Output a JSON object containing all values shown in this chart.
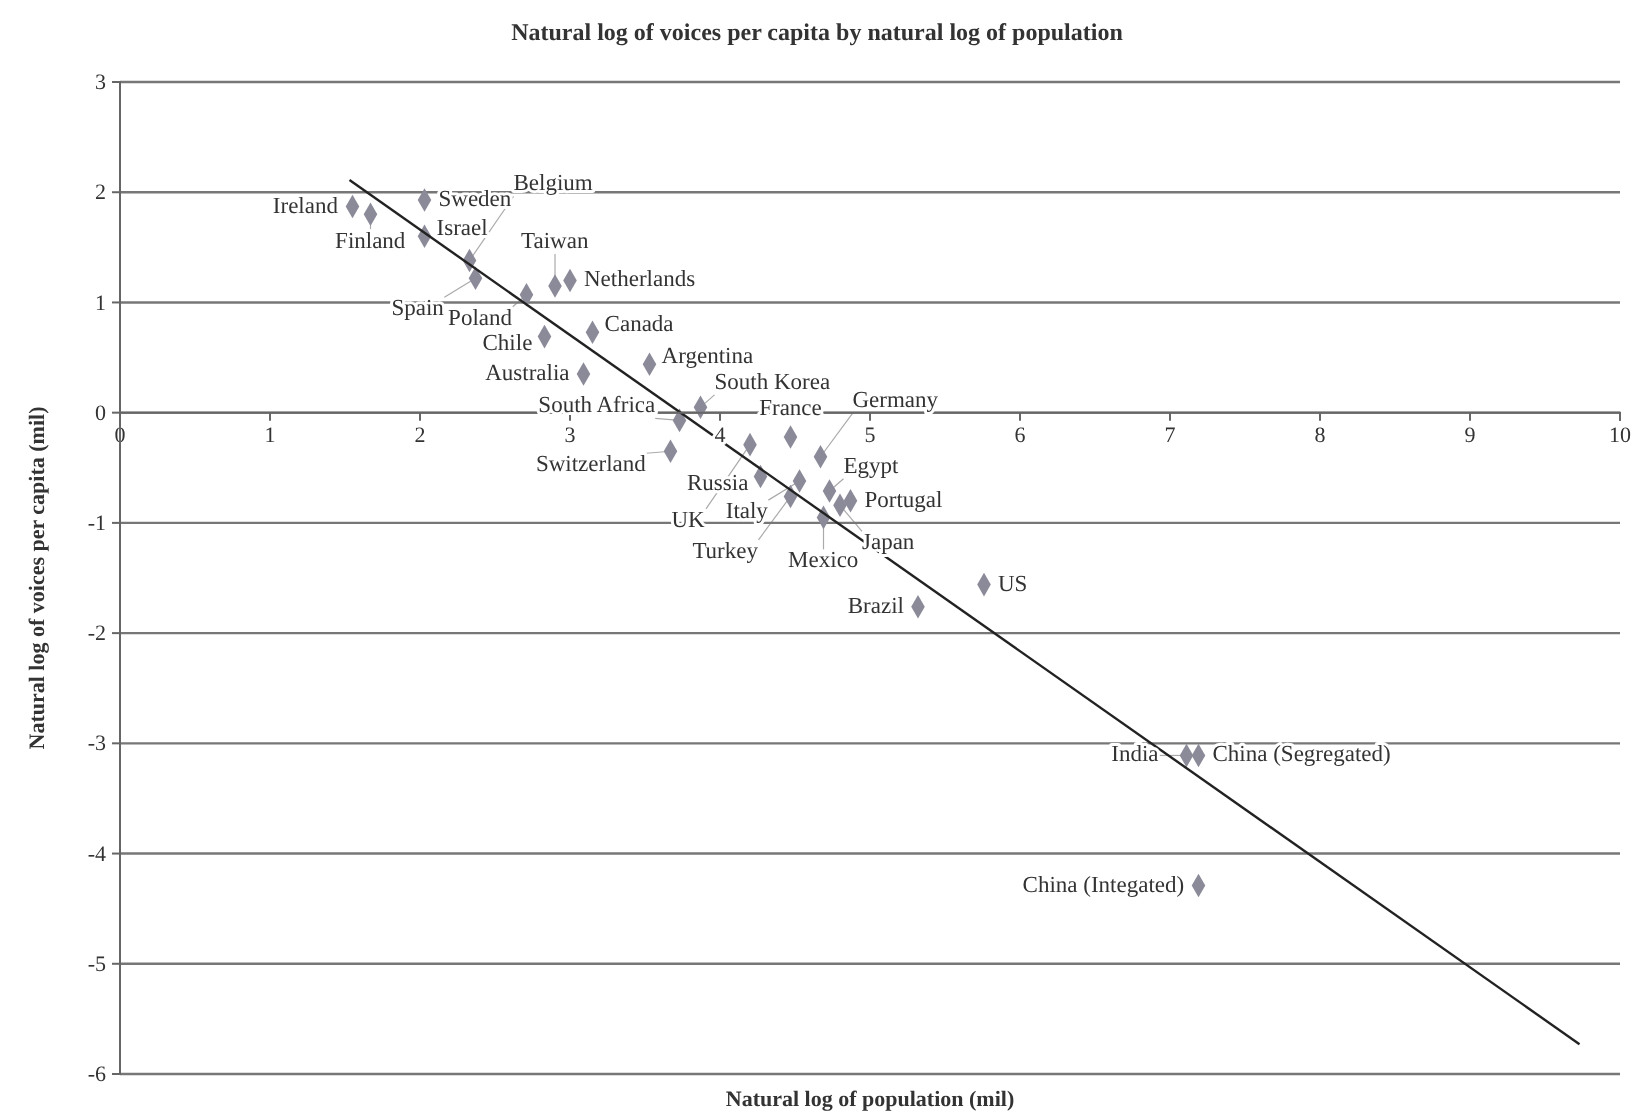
{
  "chart_data": {
    "type": "scatter",
    "title": "Natural log of voices per capita by natural log of population",
    "xlabel": "Natural log of population (mil)",
    "ylabel": "Natural log of voices per capita (mil)",
    "xlim": [
      0,
      10
    ],
    "xticks": [
      0,
      1,
      2,
      3,
      4,
      5,
      6,
      7,
      8,
      9,
      10
    ],
    "ylim": [
      -6,
      3
    ],
    "yticks": [
      -6,
      -5,
      -4,
      -3,
      -2,
      -1,
      0,
      1,
      2,
      3
    ],
    "grid": "y",
    "marker": "diamond",
    "series": [
      {
        "name": "Ireland",
        "color": "#8a8a99",
        "x": [
          1.55
        ],
        "values": [
          1.87
        ]
      },
      {
        "name": "Finland",
        "color": "#8a8a99",
        "x": [
          1.67
        ],
        "values": [
          1.8
        ]
      },
      {
        "name": "Sweden",
        "color": "#8a8a99",
        "x": [
          2.03
        ],
        "values": [
          1.93
        ]
      },
      {
        "name": "Israel",
        "color": "#8a8a99",
        "x": [
          2.03
        ],
        "values": [
          1.6
        ]
      },
      {
        "name": "Belgium",
        "color": "#8a8a99",
        "x": [
          2.33
        ],
        "values": [
          1.38
        ]
      },
      {
        "name": "Spain",
        "color": "#8a8a99",
        "x": [
          2.37
        ],
        "values": [
          1.22
        ]
      },
      {
        "name": "Poland",
        "color": "#8a8a99",
        "x": [
          2.71
        ],
        "values": [
          1.07
        ]
      },
      {
        "name": "Taiwan",
        "color": "#8a8a99",
        "x": [
          2.9
        ],
        "values": [
          1.15
        ]
      },
      {
        "name": "Netherlands",
        "color": "#8a8a99",
        "x": [
          3.0
        ],
        "values": [
          1.2
        ]
      },
      {
        "name": "Chile",
        "color": "#8a8a99",
        "x": [
          2.83
        ],
        "values": [
          0.69
        ]
      },
      {
        "name": "Canada",
        "color": "#8a8a99",
        "x": [
          3.15
        ],
        "values": [
          0.73
        ]
      },
      {
        "name": "Australia",
        "color": "#8a8a99",
        "x": [
          3.09
        ],
        "values": [
          0.35
        ]
      },
      {
        "name": "Argentina",
        "color": "#8a8a99",
        "x": [
          3.53
        ],
        "values": [
          0.44
        ]
      },
      {
        "name": "South Korea",
        "color": "#8a8a99",
        "x": [
          3.87
        ],
        "values": [
          0.05
        ]
      },
      {
        "name": "South Africa",
        "color": "#8a8a99",
        "x": [
          3.73
        ],
        "values": [
          -0.07
        ]
      },
      {
        "name": "France",
        "color": "#8a8a99",
        "x": [
          4.47
        ],
        "values": [
          -0.22
        ]
      },
      {
        "name": "UK",
        "color": "#8a8a99",
        "x": [
          4.2
        ],
        "values": [
          -0.29
        ]
      },
      {
        "name": "Germany",
        "color": "#8a8a99",
        "x": [
          4.67
        ],
        "values": [
          -0.4
        ]
      },
      {
        "name": "Switzerland",
        "color": "#8a8a99",
        "x": [
          3.67
        ],
        "values": [
          -0.35
        ]
      },
      {
        "name": "Russia",
        "color": "#8a8a99",
        "x": [
          4.27
        ],
        "values": [
          -0.58
        ]
      },
      {
        "name": "Italy",
        "color": "#8a8a99",
        "x": [
          4.53
        ],
        "values": [
          -0.62
        ]
      },
      {
        "name": "Egypt",
        "color": "#8a8a99",
        "x": [
          4.73
        ],
        "values": [
          -0.71
        ]
      },
      {
        "name": "Turkey",
        "color": "#8a8a99",
        "x": [
          4.47
        ],
        "values": [
          -0.76
        ]
      },
      {
        "name": "Japan",
        "color": "#8a8a99",
        "x": [
          4.8
        ],
        "values": [
          -0.84
        ]
      },
      {
        "name": "Portugal",
        "color": "#8a8a99",
        "x": [
          4.87
        ],
        "values": [
          -0.8
        ]
      },
      {
        "name": "Mexico",
        "color": "#8a8a99",
        "x": [
          4.69
        ],
        "values": [
          -0.95
        ]
      },
      {
        "name": "Brazil",
        "color": "#8a8a99",
        "x": [
          5.32
        ],
        "values": [
          -1.76
        ]
      },
      {
        "name": "US",
        "color": "#8a8a99",
        "x": [
          5.76
        ],
        "values": [
          -1.56
        ]
      },
      {
        "name": "India",
        "color": "#8a8a99",
        "x": [
          7.11
        ],
        "values": [
          -3.11
        ]
      },
      {
        "name": "China (Segregated)",
        "color": "#8a8a99",
        "x": [
          7.19
        ],
        "values": [
          -3.11
        ]
      },
      {
        "name": "China (Integated)",
        "color": "#8a8a99",
        "x": [
          7.19
        ],
        "values": [
          -4.29
        ]
      },
      {
        "type": "line",
        "color": "#222222",
        "line_style": "solid",
        "marker": "none",
        "x": [
          1.53,
          9.73
        ],
        "values": [
          2.11,
          -5.73
        ]
      }
    ]
  }
}
